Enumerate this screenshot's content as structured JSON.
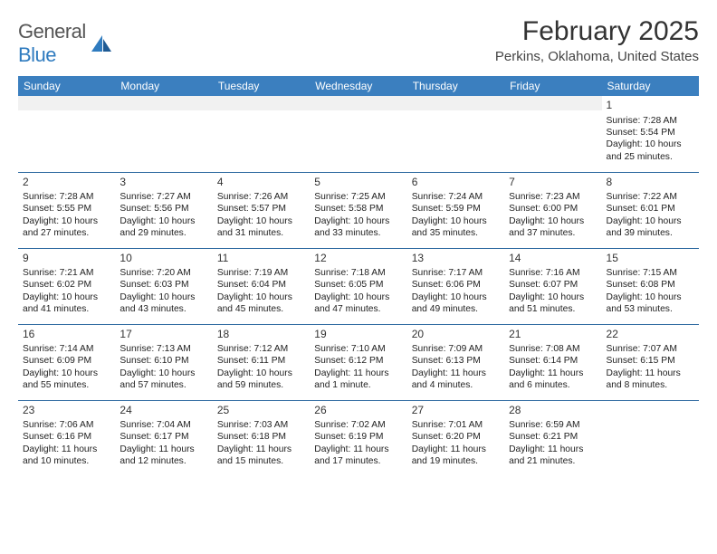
{
  "logo": {
    "word1": "General",
    "word2": "Blue"
  },
  "header": {
    "title": "February 2025",
    "location": "Perkins, Oklahoma, United States"
  },
  "dayNames": [
    "Sunday",
    "Monday",
    "Tuesday",
    "Wednesday",
    "Thursday",
    "Friday",
    "Saturday"
  ],
  "colors": {
    "headerBg": "#3b7fbf",
    "rowBorder": "#2e6aa0",
    "spacerBg": "#f1f1f1",
    "logoBlue": "#2f7bbf"
  },
  "calendar": {
    "firstDayColumn": 6,
    "days": [
      {
        "n": "1",
        "sunrise": "Sunrise: 7:28 AM",
        "sunset": "Sunset: 5:54 PM",
        "daylight": "Daylight: 10 hours and 25 minutes."
      },
      {
        "n": "2",
        "sunrise": "Sunrise: 7:28 AM",
        "sunset": "Sunset: 5:55 PM",
        "daylight": "Daylight: 10 hours and 27 minutes."
      },
      {
        "n": "3",
        "sunrise": "Sunrise: 7:27 AM",
        "sunset": "Sunset: 5:56 PM",
        "daylight": "Daylight: 10 hours and 29 minutes."
      },
      {
        "n": "4",
        "sunrise": "Sunrise: 7:26 AM",
        "sunset": "Sunset: 5:57 PM",
        "daylight": "Daylight: 10 hours and 31 minutes."
      },
      {
        "n": "5",
        "sunrise": "Sunrise: 7:25 AM",
        "sunset": "Sunset: 5:58 PM",
        "daylight": "Daylight: 10 hours and 33 minutes."
      },
      {
        "n": "6",
        "sunrise": "Sunrise: 7:24 AM",
        "sunset": "Sunset: 5:59 PM",
        "daylight": "Daylight: 10 hours and 35 minutes."
      },
      {
        "n": "7",
        "sunrise": "Sunrise: 7:23 AM",
        "sunset": "Sunset: 6:00 PM",
        "daylight": "Daylight: 10 hours and 37 minutes."
      },
      {
        "n": "8",
        "sunrise": "Sunrise: 7:22 AM",
        "sunset": "Sunset: 6:01 PM",
        "daylight": "Daylight: 10 hours and 39 minutes."
      },
      {
        "n": "9",
        "sunrise": "Sunrise: 7:21 AM",
        "sunset": "Sunset: 6:02 PM",
        "daylight": "Daylight: 10 hours and 41 minutes."
      },
      {
        "n": "10",
        "sunrise": "Sunrise: 7:20 AM",
        "sunset": "Sunset: 6:03 PM",
        "daylight": "Daylight: 10 hours and 43 minutes."
      },
      {
        "n": "11",
        "sunrise": "Sunrise: 7:19 AM",
        "sunset": "Sunset: 6:04 PM",
        "daylight": "Daylight: 10 hours and 45 minutes."
      },
      {
        "n": "12",
        "sunrise": "Sunrise: 7:18 AM",
        "sunset": "Sunset: 6:05 PM",
        "daylight": "Daylight: 10 hours and 47 minutes."
      },
      {
        "n": "13",
        "sunrise": "Sunrise: 7:17 AM",
        "sunset": "Sunset: 6:06 PM",
        "daylight": "Daylight: 10 hours and 49 minutes."
      },
      {
        "n": "14",
        "sunrise": "Sunrise: 7:16 AM",
        "sunset": "Sunset: 6:07 PM",
        "daylight": "Daylight: 10 hours and 51 minutes."
      },
      {
        "n": "15",
        "sunrise": "Sunrise: 7:15 AM",
        "sunset": "Sunset: 6:08 PM",
        "daylight": "Daylight: 10 hours and 53 minutes."
      },
      {
        "n": "16",
        "sunrise": "Sunrise: 7:14 AM",
        "sunset": "Sunset: 6:09 PM",
        "daylight": "Daylight: 10 hours and 55 minutes."
      },
      {
        "n": "17",
        "sunrise": "Sunrise: 7:13 AM",
        "sunset": "Sunset: 6:10 PM",
        "daylight": "Daylight: 10 hours and 57 minutes."
      },
      {
        "n": "18",
        "sunrise": "Sunrise: 7:12 AM",
        "sunset": "Sunset: 6:11 PM",
        "daylight": "Daylight: 10 hours and 59 minutes."
      },
      {
        "n": "19",
        "sunrise": "Sunrise: 7:10 AM",
        "sunset": "Sunset: 6:12 PM",
        "daylight": "Daylight: 11 hours and 1 minute."
      },
      {
        "n": "20",
        "sunrise": "Sunrise: 7:09 AM",
        "sunset": "Sunset: 6:13 PM",
        "daylight": "Daylight: 11 hours and 4 minutes."
      },
      {
        "n": "21",
        "sunrise": "Sunrise: 7:08 AM",
        "sunset": "Sunset: 6:14 PM",
        "daylight": "Daylight: 11 hours and 6 minutes."
      },
      {
        "n": "22",
        "sunrise": "Sunrise: 7:07 AM",
        "sunset": "Sunset: 6:15 PM",
        "daylight": "Daylight: 11 hours and 8 minutes."
      },
      {
        "n": "23",
        "sunrise": "Sunrise: 7:06 AM",
        "sunset": "Sunset: 6:16 PM",
        "daylight": "Daylight: 11 hours and 10 minutes."
      },
      {
        "n": "24",
        "sunrise": "Sunrise: 7:04 AM",
        "sunset": "Sunset: 6:17 PM",
        "daylight": "Daylight: 11 hours and 12 minutes."
      },
      {
        "n": "25",
        "sunrise": "Sunrise: 7:03 AM",
        "sunset": "Sunset: 6:18 PM",
        "daylight": "Daylight: 11 hours and 15 minutes."
      },
      {
        "n": "26",
        "sunrise": "Sunrise: 7:02 AM",
        "sunset": "Sunset: 6:19 PM",
        "daylight": "Daylight: 11 hours and 17 minutes."
      },
      {
        "n": "27",
        "sunrise": "Sunrise: 7:01 AM",
        "sunset": "Sunset: 6:20 PM",
        "daylight": "Daylight: 11 hours and 19 minutes."
      },
      {
        "n": "28",
        "sunrise": "Sunrise: 6:59 AM",
        "sunset": "Sunset: 6:21 PM",
        "daylight": "Daylight: 11 hours and 21 minutes."
      }
    ]
  }
}
